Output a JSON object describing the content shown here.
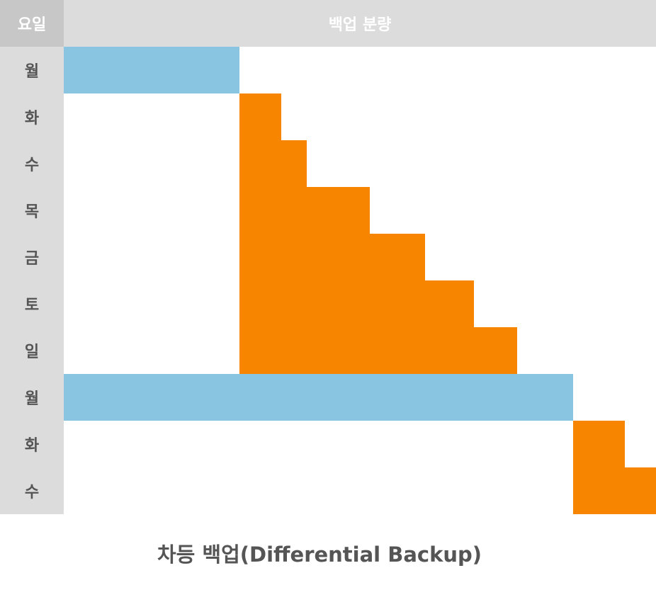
{
  "header": {
    "day_label": "요일",
    "amount_label": "백업 분량"
  },
  "caption": "차등 백업(Differential Backup)",
  "colors": {
    "full_backup": "#89c4e1",
    "differential_backup": "#f78500"
  },
  "rows": [
    {
      "day": "월",
      "type": "full",
      "start": 0,
      "end": 248
    },
    {
      "day": "화",
      "type": "diff",
      "start": 248,
      "end": 307
    },
    {
      "day": "수",
      "type": "diff",
      "start": 248,
      "end": 343
    },
    {
      "day": "목",
      "type": "diff",
      "start": 248,
      "end": 432
    },
    {
      "day": "금",
      "type": "diff",
      "start": 248,
      "end": 510
    },
    {
      "day": "토",
      "type": "diff",
      "start": 248,
      "end": 579
    },
    {
      "day": "일",
      "type": "diff",
      "start": 248,
      "end": 640
    },
    {
      "day": "월",
      "type": "full",
      "start": 0,
      "end": 719
    },
    {
      "day": "화",
      "type": "diff",
      "start": 719,
      "end": 792
    },
    {
      "day": "수",
      "type": "diff",
      "start": 719,
      "end": 836
    }
  ]
}
